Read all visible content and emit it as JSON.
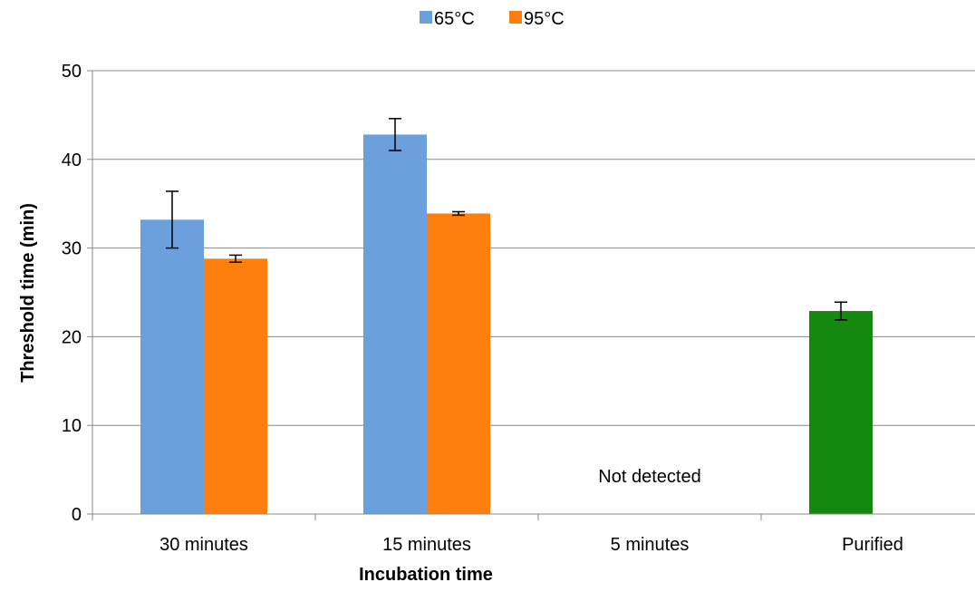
{
  "chart_data": {
    "type": "bar",
    "title": "",
    "xlabel": "Incubation time",
    "ylabel": "Threshold time (min)",
    "categories": [
      "30 minutes",
      "15 minutes",
      "5 minutes",
      "Purified"
    ],
    "ylim": [
      0,
      50
    ],
    "yticks": [
      "0",
      "10",
      "20",
      "30",
      "40",
      "50"
    ],
    "grid": true,
    "legend_position": "top",
    "series": [
      {
        "name": "65°C",
        "color": "#6ca0dc",
        "values": [
          33.2,
          42.8,
          0,
          null
        ],
        "error": [
          3.2,
          1.8,
          0,
          null
        ]
      },
      {
        "name": "95°C",
        "color": "#ff7f0e",
        "values": [
          28.8,
          33.9,
          0,
          null
        ],
        "error": [
          0.4,
          0.2,
          0,
          null
        ]
      }
    ],
    "extra_bars": [
      {
        "category": "Purified",
        "value": 22.9,
        "error": 1.0,
        "color": "#15890f"
      }
    ],
    "annotations": [
      {
        "category": "5 minutes",
        "text": "Not detected"
      }
    ]
  }
}
